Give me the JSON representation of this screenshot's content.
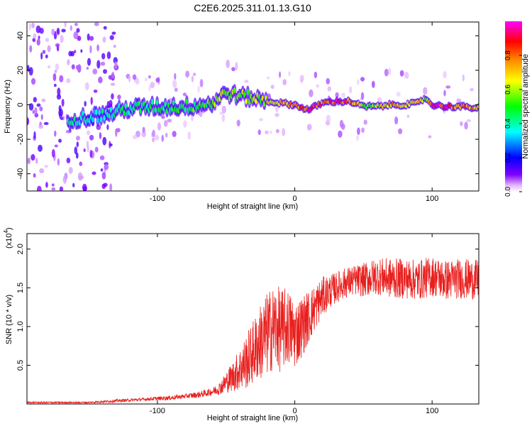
{
  "title": "C2E6.2025.311.01.13.G10",
  "chart_data": [
    {
      "type": "heatmap",
      "xlabel": "Height of straight line (km)",
      "ylabel": "Frequency (Hz)",
      "xlim": [
        -195,
        134
      ],
      "ylim": [
        -50,
        48
      ],
      "xticks": [
        -100,
        0,
        100
      ],
      "yticks": [
        -40,
        -20,
        0,
        20,
        40
      ],
      "colorbar": {
        "label": "Normalized spectral amplitude",
        "range": [
          0,
          1
        ],
        "ticks": [
          "0.0",
          "0.2",
          "0.4",
          "0.6",
          "0.8"
        ],
        "colors": [
          "#ffffff",
          "#8000ff",
          "#0000ff",
          "#00ffff",
          "#00ff00",
          "#ffff00",
          "#ff8000",
          "#ff0000",
          "#ff00ff"
        ]
      },
      "ridge": {
        "x": [
          -160,
          -140,
          -120,
          -100,
          -80,
          -60,
          -50,
          -40,
          -30,
          -20,
          -10,
          0,
          10,
          20,
          30,
          40,
          50,
          60,
          70,
          80,
          90,
          95,
          100,
          110,
          120,
          134
        ],
        "freq": [
          -8,
          -6,
          -2,
          -1,
          -1,
          1,
          7,
          5,
          4,
          2,
          1,
          0,
          -3,
          1,
          2,
          2,
          -1,
          -1,
          0,
          0,
          1,
          4,
          0,
          -1,
          -1,
          -2
        ],
        "amplitude": [
          0.4,
          0.4,
          0.45,
          0.45,
          0.5,
          0.55,
          0.6,
          0.6,
          0.6,
          0.65,
          0.7,
          0.8,
          0.9,
          0.9,
          0.9,
          0.85,
          0.6,
          0.6,
          0.75,
          0.7,
          0.7,
          0.6,
          0.9,
          0.9,
          0.8,
          0.75
        ]
      }
    },
    {
      "type": "line",
      "xlabel": "Height of straight line (km)",
      "ylabel": "SNR (10 * v/v)",
      "scale_label": "(x10",
      "scale_exp": "4",
      "xlim": [
        -195,
        134
      ],
      "ylim": [
        0,
        2.2
      ],
      "xticks": [
        -100,
        0,
        100
      ],
      "yticks": [
        "0.5",
        "1.0",
        "1.5",
        "2.0"
      ],
      "color": "#e8201e",
      "x": [
        -195,
        -150,
        -130,
        -110,
        -90,
        -80,
        -70,
        -60,
        -55,
        -50,
        -45,
        -40,
        -35,
        -30,
        -25,
        -20,
        -15,
        -10,
        -5,
        0,
        5,
        10,
        15,
        20,
        25,
        30,
        35,
        40,
        45,
        50,
        60,
        70,
        80,
        90,
        100,
        110,
        120,
        134
      ],
      "y": [
        0.02,
        0.02,
        0.04,
        0.06,
        0.08,
        0.1,
        0.12,
        0.16,
        0.2,
        0.28,
        0.36,
        0.45,
        0.55,
        0.68,
        0.8,
        0.9,
        1.0,
        0.95,
        1.0,
        0.9,
        1.0,
        1.12,
        1.25,
        1.38,
        1.45,
        1.5,
        1.55,
        1.58,
        1.6,
        1.6,
        1.65,
        1.62,
        1.62,
        1.6,
        1.65,
        1.6,
        1.62,
        1.6
      ],
      "noise": [
        0.01,
        0.01,
        0.02,
        0.02,
        0.03,
        0.03,
        0.04,
        0.05,
        0.08,
        0.14,
        0.2,
        0.28,
        0.36,
        0.42,
        0.5,
        0.55,
        0.55,
        0.55,
        0.5,
        0.45,
        0.4,
        0.35,
        0.3,
        0.26,
        0.22,
        0.2,
        0.2,
        0.2,
        0.2,
        0.22,
        0.24,
        0.26,
        0.26,
        0.26,
        0.26,
        0.26,
        0.26,
        0.26
      ]
    }
  ]
}
